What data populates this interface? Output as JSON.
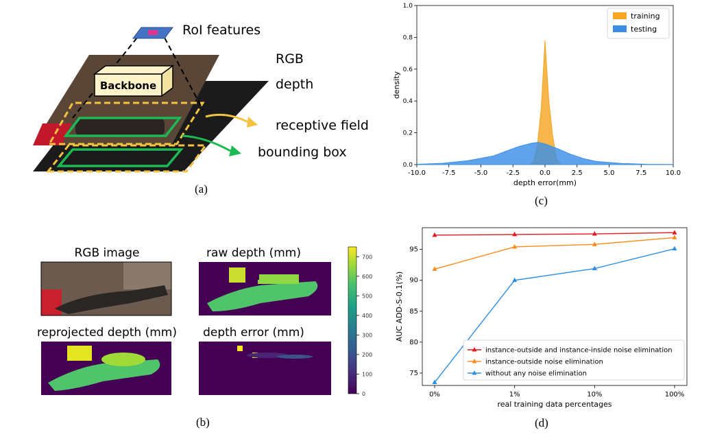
{
  "panel_a": {
    "caption": "(a)",
    "labels": {
      "roi": "RoI features",
      "rgb": "RGB",
      "depth": "depth",
      "backbone": "Backbone",
      "receptive": "receptive field",
      "bbox": "bounding box"
    },
    "colors": {
      "receptive": "#f5c342",
      "bbox": "#1db954",
      "roi": "#4472c4"
    }
  },
  "panel_b": {
    "caption": "(b)",
    "titles": [
      "RGB image",
      "raw depth (mm)",
      "reprojected depth (mm)",
      "depth error (mm)"
    ],
    "colorbar": {
      "ticks": [
        "0",
        "100",
        "200",
        "300",
        "400",
        "500",
        "600",
        "700"
      ],
      "max": 750
    }
  },
  "panel_c": {
    "caption": "(c)",
    "chart_data": {
      "type": "area",
      "xlabel": "depth error(mm)",
      "ylabel": "density",
      "xlim": [
        -10,
        10
      ],
      "ylim": [
        0,
        1.0
      ],
      "xticks": [
        "-10.0",
        "-7.5",
        "-5.0",
        "-2.5",
        "0.0",
        "2.5",
        "5.0",
        "7.5",
        "10.0"
      ],
      "yticks": [
        "0.0",
        "0.2",
        "0.4",
        "0.6",
        "0.8",
        "1.0"
      ],
      "legend": "top-right",
      "series": [
        {
          "name": "training",
          "color": "#f5a623",
          "x": [
            -10,
            -1.2,
            -0.9,
            -0.6,
            -0.3,
            0,
            0.3,
            0.6,
            0.9,
            1.2,
            10
          ],
          "y": [
            0,
            0,
            0.02,
            0.12,
            0.35,
            0.78,
            0.4,
            0.18,
            0.04,
            0,
            0
          ]
        },
        {
          "name": "testing",
          "color": "#3b8fe6",
          "x": [
            -10,
            -8,
            -6,
            -4,
            -3,
            -2,
            -1,
            -0.5,
            0,
            1,
            2,
            3,
            4,
            6,
            8,
            10
          ],
          "y": [
            0.002,
            0.008,
            0.025,
            0.055,
            0.085,
            0.115,
            0.135,
            0.14,
            0.13,
            0.1,
            0.065,
            0.038,
            0.02,
            0.007,
            0.002,
            0.001
          ]
        }
      ]
    }
  },
  "panel_d": {
    "caption": "(d)",
    "chart_data": {
      "type": "line",
      "xlabel": "real training data percentages",
      "ylabel": "AUC ADD-S-0.1(%)",
      "categories": [
        "0%",
        "1%",
        "10%",
        "100%"
      ],
      "ylim": [
        73,
        98.5
      ],
      "yticks": [
        75,
        80,
        85,
        90,
        95
      ],
      "legend": "bottom-right",
      "series": [
        {
          "name": "instance-outside and instance-inside noise elimination",
          "color": "#e41a1c",
          "values": [
            97.3,
            97.4,
            97.5,
            97.7
          ]
        },
        {
          "name": "instance-outside noise elimination",
          "color": "#ff8c1a",
          "values": [
            91.8,
            95.4,
            95.8,
            96.9
          ]
        },
        {
          "name": "without any noise elimination",
          "color": "#2d8ee6",
          "values": [
            73.5,
            90.0,
            91.9,
            95.1
          ]
        }
      ]
    }
  }
}
